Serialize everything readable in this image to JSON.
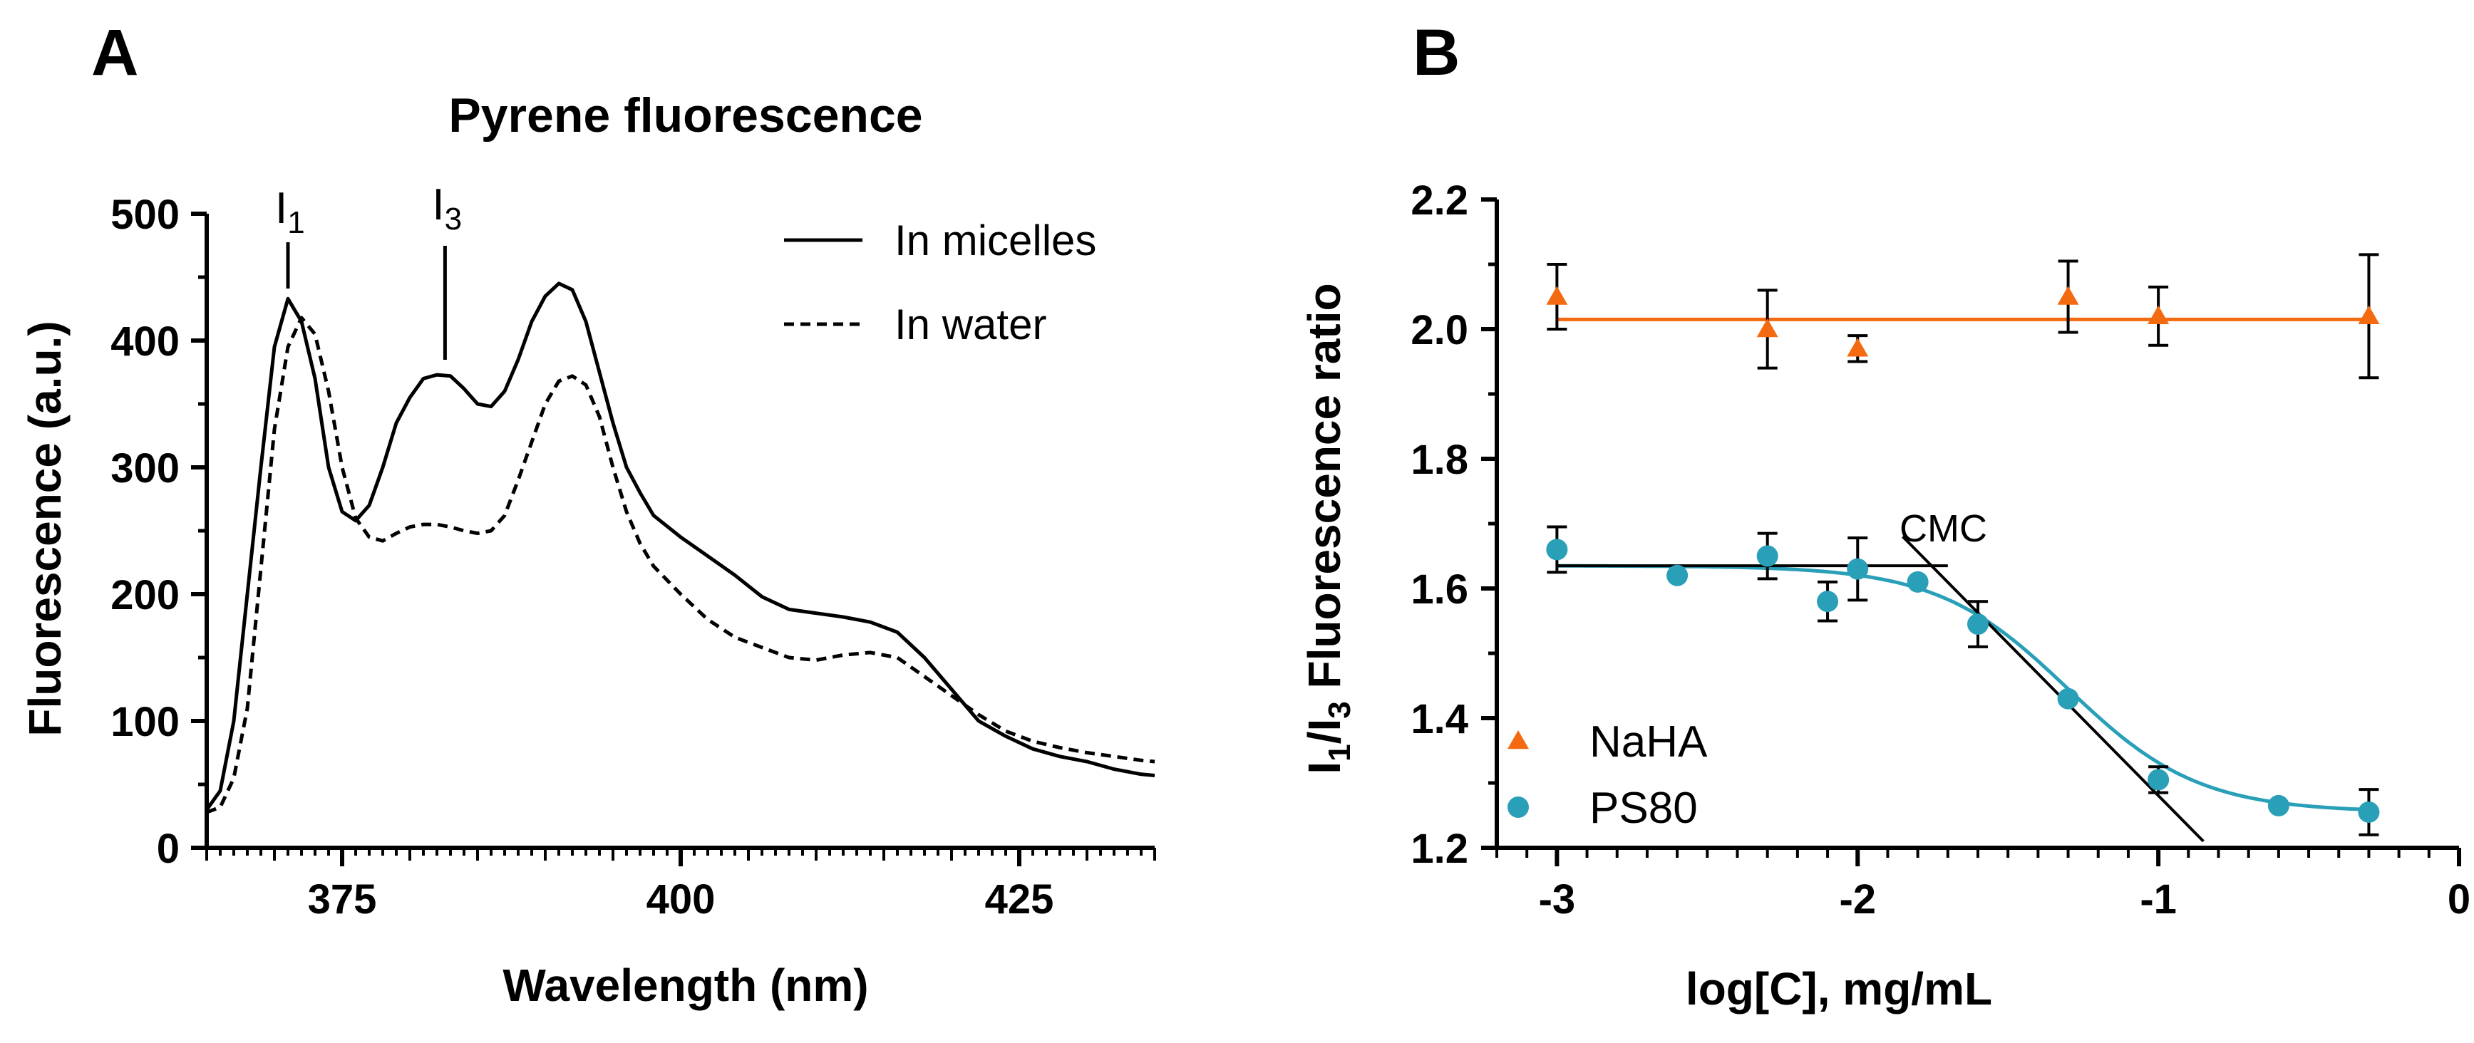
{
  "chart_data": [
    {
      "panel": "A",
      "type": "line",
      "title": "Pyrene fluorescence",
      "xlabel": "Wavelength (nm)",
      "ylabel": "Fluorescence (a.u.)",
      "xlim": [
        365,
        435
      ],
      "ylim": [
        0,
        500
      ],
      "xticks": [
        375,
        400,
        425
      ],
      "yticks": [
        0,
        100,
        200,
        300,
        400,
        500
      ],
      "legend_position": "top-right",
      "annotations": [
        {
          "label": "I",
          "sub": "1",
          "x": 371
        },
        {
          "label": "I",
          "sub": "3",
          "x": 382.6
        }
      ],
      "series": [
        {
          "name": "In micelles",
          "style": "solid",
          "points": [
            [
              365,
              30
            ],
            [
              366,
              45
            ],
            [
              367,
              100
            ],
            [
              368,
              200
            ],
            [
              369,
              300
            ],
            [
              370,
              395
            ],
            [
              371,
              433
            ],
            [
              372,
              415
            ],
            [
              373,
              370
            ],
            [
              374,
              300
            ],
            [
              375,
              265
            ],
            [
              376,
              258
            ],
            [
              377,
              270
            ],
            [
              378,
              300
            ],
            [
              379,
              335
            ],
            [
              380,
              355
            ],
            [
              381,
              370
            ],
            [
              382,
              373
            ],
            [
              383,
              372
            ],
            [
              384,
              362
            ],
            [
              385,
              350
            ],
            [
              386,
              348
            ],
            [
              387,
              360
            ],
            [
              388,
              385
            ],
            [
              389,
              415
            ],
            [
              390,
              435
            ],
            [
              391,
              445
            ],
            [
              392,
              440
            ],
            [
              393,
              415
            ],
            [
              394,
              375
            ],
            [
              395,
              335
            ],
            [
              396,
              300
            ],
            [
              397,
              280
            ],
            [
              398,
              262
            ],
            [
              400,
              245
            ],
            [
              402,
              230
            ],
            [
              404,
              215
            ],
            [
              406,
              198
            ],
            [
              408,
              188
            ],
            [
              410,
              185
            ],
            [
              412,
              182
            ],
            [
              414,
              178
            ],
            [
              416,
              170
            ],
            [
              418,
              150
            ],
            [
              420,
              125
            ],
            [
              422,
              100
            ],
            [
              424,
              88
            ],
            [
              426,
              78
            ],
            [
              428,
              72
            ],
            [
              430,
              68
            ],
            [
              432,
              62
            ],
            [
              434,
              58
            ],
            [
              435,
              57
            ]
          ]
        },
        {
          "name": "In water",
          "style": "dashed",
          "points": [
            [
              365,
              28
            ],
            [
              366,
              32
            ],
            [
              367,
              55
            ],
            [
              368,
              110
            ],
            [
              369,
              220
            ],
            [
              370,
              330
            ],
            [
              371,
              395
            ],
            [
              372,
              418
            ],
            [
              373,
              405
            ],
            [
              374,
              360
            ],
            [
              375,
              300
            ],
            [
              376,
              260
            ],
            [
              377,
              245
            ],
            [
              378,
              242
            ],
            [
              379,
              248
            ],
            [
              380,
              253
            ],
            [
              381,
              255
            ],
            [
              382,
              255
            ],
            [
              383,
              253
            ],
            [
              384,
              250
            ],
            [
              385,
              248
            ],
            [
              386,
              250
            ],
            [
              387,
              262
            ],
            [
              388,
              290
            ],
            [
              389,
              320
            ],
            [
              390,
              350
            ],
            [
              391,
              368
            ],
            [
              392,
              372
            ],
            [
              393,
              365
            ],
            [
              394,
              340
            ],
            [
              395,
              300
            ],
            [
              396,
              265
            ],
            [
              397,
              240
            ],
            [
              398,
              222
            ],
            [
              400,
              200
            ],
            [
              402,
              180
            ],
            [
              404,
              166
            ],
            [
              406,
              158
            ],
            [
              408,
              150
            ],
            [
              410,
              148
            ],
            [
              412,
              152
            ],
            [
              414,
              154
            ],
            [
              416,
              150
            ],
            [
              418,
              135
            ],
            [
              420,
              120
            ],
            [
              422,
              105
            ],
            [
              424,
              92
            ],
            [
              426,
              84
            ],
            [
              428,
              79
            ],
            [
              430,
              75
            ],
            [
              432,
              72
            ],
            [
              434,
              69
            ],
            [
              435,
              68
            ]
          ]
        }
      ]
    },
    {
      "panel": "B",
      "type": "scatter",
      "xlabel": "log[C], mg/mL",
      "ylabel_parts": [
        "I",
        "1",
        "/I",
        "3",
        " Fluorescence ratio"
      ],
      "xlim": [
        -3.2,
        0
      ],
      "ylim": [
        1.2,
        2.2
      ],
      "xticks": [
        -3,
        -2,
        -1,
        0
      ],
      "xtick_labels": [
        "-3",
        "-2",
        "-1",
        "0"
      ],
      "yticks": [
        1.2,
        1.4,
        1.6,
        1.8,
        2.0,
        2.2
      ],
      "ytick_labels": [
        "1.2",
        "1.4",
        "1.6",
        "1.8",
        "2.0",
        "2.2"
      ],
      "legend_position": "bottom-left",
      "annotation": {
        "text": "CMC"
      },
      "series": [
        {
          "name": "NaHA",
          "marker": "triangle",
          "color": "#f46a10",
          "fit": "constant",
          "fit_value": 2.015,
          "points": [
            {
              "x": -3.0,
              "y": 2.05,
              "err": 0.05
            },
            {
              "x": -2.3,
              "y": 2.0,
              "err": 0.06
            },
            {
              "x": -2.0,
              "y": 1.97,
              "err": 0.02
            },
            {
              "x": -1.3,
              "y": 2.05,
              "err": 0.055
            },
            {
              "x": -1.0,
              "y": 2.02,
              "err": 0.045
            },
            {
              "x": -0.3,
              "y": 2.02,
              "err": 0.095
            }
          ]
        },
        {
          "name": "PS80",
          "marker": "circle",
          "color": "#2a9fb8",
          "fit": "sigmoid",
          "fit_params": {
            "top": 1.635,
            "bottom": 1.255,
            "x50": -1.3,
            "hill": 2.0
          },
          "points": [
            {
              "x": -3.0,
              "y": 1.66,
              "err": 0.035
            },
            {
              "x": -2.6,
              "y": 1.62,
              "err": 0
            },
            {
              "x": -2.3,
              "y": 1.65,
              "err": 0.035
            },
            {
              "x": -2.1,
              "y": 1.58,
              "err": 0.03
            },
            {
              "x": -2.0,
              "y": 1.63,
              "err": 0.048
            },
            {
              "x": -1.8,
              "y": 1.61,
              "err": 0
            },
            {
              "x": -1.6,
              "y": 1.545,
              "err": 0.035
            },
            {
              "x": -1.3,
              "y": 1.43,
              "err": 0
            },
            {
              "x": -1.0,
              "y": 1.305,
              "err": 0.02
            },
            {
              "x": -0.6,
              "y": 1.265,
              "err": 0
            },
            {
              "x": -0.3,
              "y": 1.255,
              "err": 0.035
            }
          ]
        }
      ],
      "tangent_lines": [
        {
          "x1": -3.0,
          "y1": 1.635,
          "x2": -1.7,
          "y2": 1.635
        },
        {
          "x1": -1.85,
          "y1": 1.68,
          "x2": -0.85,
          "y2": 1.21
        }
      ]
    }
  ],
  "panel_labels": [
    "A",
    "B"
  ]
}
